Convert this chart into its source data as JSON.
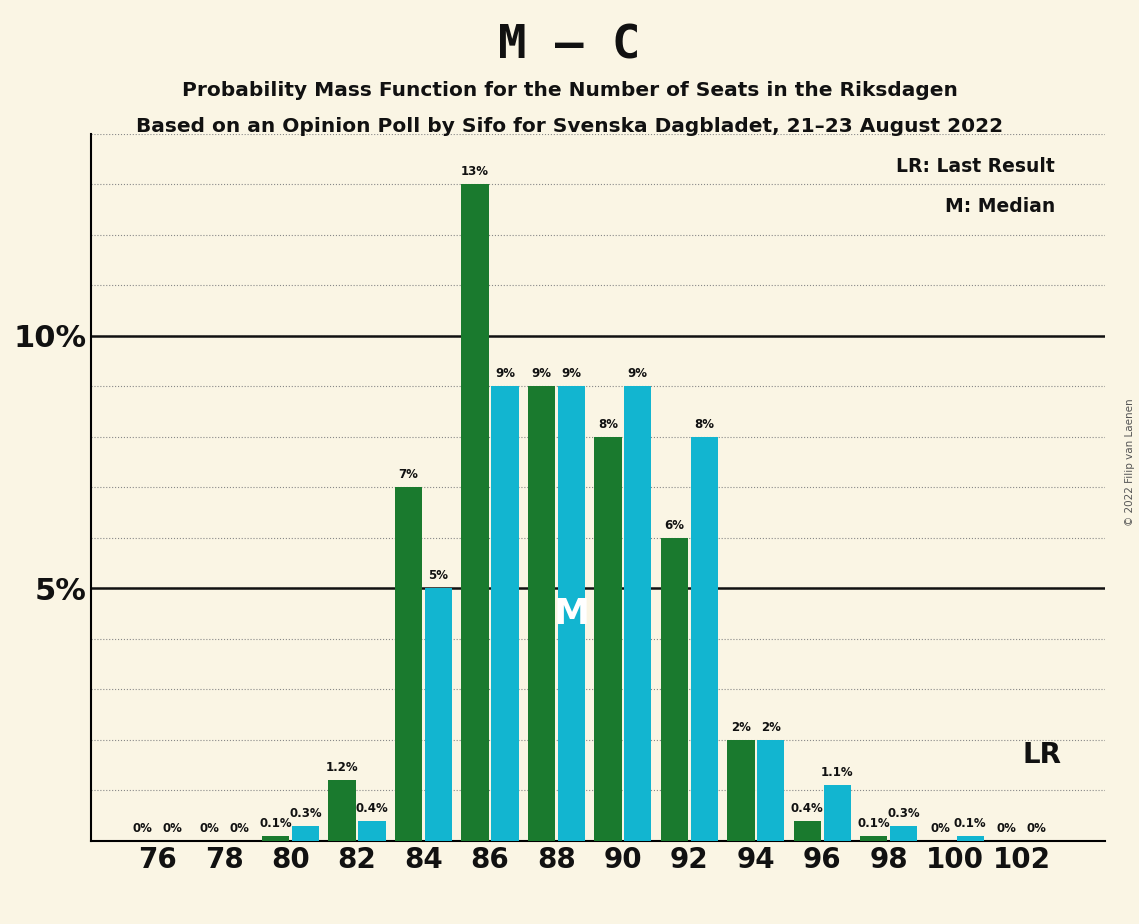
{
  "title": "M – C",
  "subtitle1": "Probability Mass Function for the Number of Seats in the Riksdagen",
  "subtitle2": "Based on an Opinion Poll by Sifo for Svenska Dagbladet, 21–23 August 2022",
  "copyright": "© 2022 Filip van Laenen",
  "legend_lr": "LR: Last Result",
  "legend_m": "M: Median",
  "seats": [
    76,
    78,
    80,
    82,
    84,
    86,
    88,
    90,
    92,
    94,
    96,
    98,
    100,
    102
  ],
  "green_values": [
    0.0,
    0.0,
    0.1,
    1.2,
    7.0,
    13.0,
    9.0,
    8.0,
    6.0,
    2.0,
    0.4,
    0.1,
    0.0,
    0.0
  ],
  "cyan_values": [
    0.0,
    0.0,
    0.3,
    0.4,
    5.0,
    9.0,
    9.0,
    9.0,
    8.0,
    2.0,
    1.1,
    0.3,
    0.1,
    0.0
  ],
  "green_labels": [
    "0%",
    "0%",
    "0.1%",
    "1.2%",
    "7%",
    "13%",
    "9%",
    "8%",
    "6%",
    "2%",
    "0.4%",
    "0.1%",
    "0%",
    "0%"
  ],
  "cyan_labels": [
    "0%",
    "0%",
    "0.3%",
    "0.4%",
    "5%",
    "9%",
    "9%",
    "9%",
    "8%",
    "2%",
    "1.1%",
    "0.3%",
    "0.1%",
    "0%"
  ],
  "green_color": "#1a7a2e",
  "cyan_color": "#12b5d0",
  "bg_color": "#faf5e4",
  "median_seat": 88,
  "lr_seat": 96,
  "ylim": [
    0,
    14
  ],
  "major_yticks": [
    5,
    10
  ],
  "bar_width": 0.82,
  "bar_gap": 0.0
}
